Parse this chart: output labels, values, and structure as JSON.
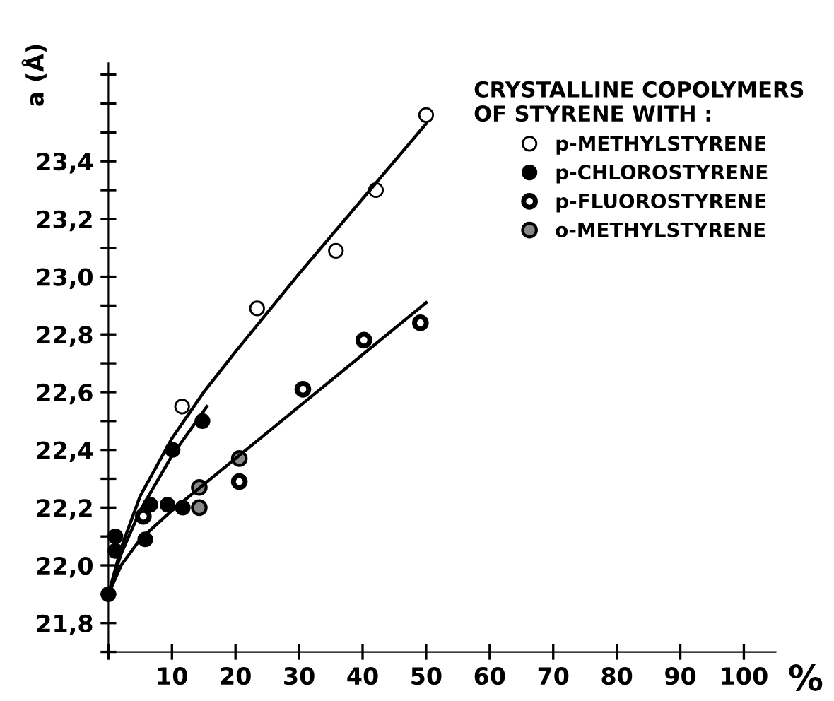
{
  "chart_data": {
    "type": "scatter",
    "xlabel": "%",
    "ylabel": "a (Å)",
    "legend_title": "CRYSTALLINE COPOLYMERS\nOF STYRENE WITH :",
    "legend": "top right",
    "grid": false,
    "marker": "circle",
    "xlim": [
      0,
      105
    ],
    "ylim": [
      21.7,
      23.74
    ],
    "xticks": [
      {
        "value": 0,
        "label": null
      },
      10,
      20,
      30,
      40,
      50,
      60,
      70,
      80,
      90,
      100
    ],
    "yticks": [
      {
        "value": 21.7,
        "label": null
      },
      "21,8",
      {
        "value": 21.9,
        "label": null
      },
      {
        "value": 22.0,
        "label": "22,0"
      },
      {
        "value": 22.1,
        "label": null
      },
      {
        "value": 22.2,
        "label": "22,2"
      },
      {
        "value": 22.3,
        "label": null
      },
      {
        "value": 22.4,
        "label": "22,4"
      },
      {
        "value": 22.5,
        "label": null
      },
      {
        "value": 22.6,
        "label": "22,6"
      },
      {
        "value": 22.7,
        "label": null
      },
      {
        "value": 22.8,
        "label": "22,8"
      },
      {
        "value": 22.9,
        "label": null
      },
      {
        "value": 23.0,
        "label": "23,0"
      },
      {
        "value": 23.1,
        "label": null
      },
      {
        "value": 23.2,
        "label": "23,2"
      },
      {
        "value": 23.3,
        "label": null
      },
      {
        "value": 23.4,
        "label": "23,4"
      },
      {
        "value": 23.5,
        "label": null
      },
      {
        "value": 23.6,
        "label": null
      },
      {
        "value": 23.7,
        "label": null
      }
    ],
    "series": [
      {
        "name": "p-METHYLSTYRENE",
        "color": "#000000",
        "x": [
          11.6,
          23.4,
          35.8,
          42.1,
          50
        ],
        "values": [
          22.55,
          22.89,
          23.09,
          23.3,
          23.56
        ]
      },
      {
        "name": "p-CHLOROSTYRENE",
        "color": "#000000",
        "x": [
          0,
          1.1,
          1.1,
          5.8,
          6.6,
          9.3,
          10.1,
          11.7,
          14.8
        ],
        "values": [
          21.9,
          22.1,
          22.05,
          22.09,
          22.21,
          22.21,
          22.4,
          22.2,
          22.5
        ]
      },
      {
        "name": "p-FLUOROSTYRENE",
        "color": "#000000",
        "x": [
          5.5,
          20.6,
          30.6,
          40.2,
          49.1
        ],
        "values": [
          22.17,
          22.29,
          22.61,
          22.78,
          22.84
        ]
      },
      {
        "name": "o-METHYLSTYRENE",
        "color": "#000000",
        "x": [
          14.3,
          14.3,
          20.6
        ],
        "values": [
          22.27,
          22.2,
          22.37
        ]
      },
      {
        "type": "line",
        "color": "#000000",
        "marker": "none",
        "x": [
          0,
          2,
          5,
          10,
          15,
          20,
          30,
          40,
          50
        ],
        "values": [
          21.9,
          22.06,
          22.24,
          22.44,
          22.6,
          22.74,
          23.01,
          23.27,
          23.53
        ]
      },
      {
        "type": "line",
        "color": "#000000",
        "marker": "none",
        "x": [
          0,
          2,
          5,
          10,
          15.5
        ],
        "values": [
          21.9,
          22.04,
          22.19,
          22.38,
          22.55
        ]
      },
      {
        "type": "line",
        "color": "#000000",
        "marker": "none",
        "x": [
          0,
          2,
          5,
          10,
          20,
          30,
          40,
          50
        ],
        "values": [
          21.9,
          22.0,
          22.09,
          22.19,
          22.37,
          22.55,
          22.73,
          22.91
        ]
      }
    ]
  }
}
